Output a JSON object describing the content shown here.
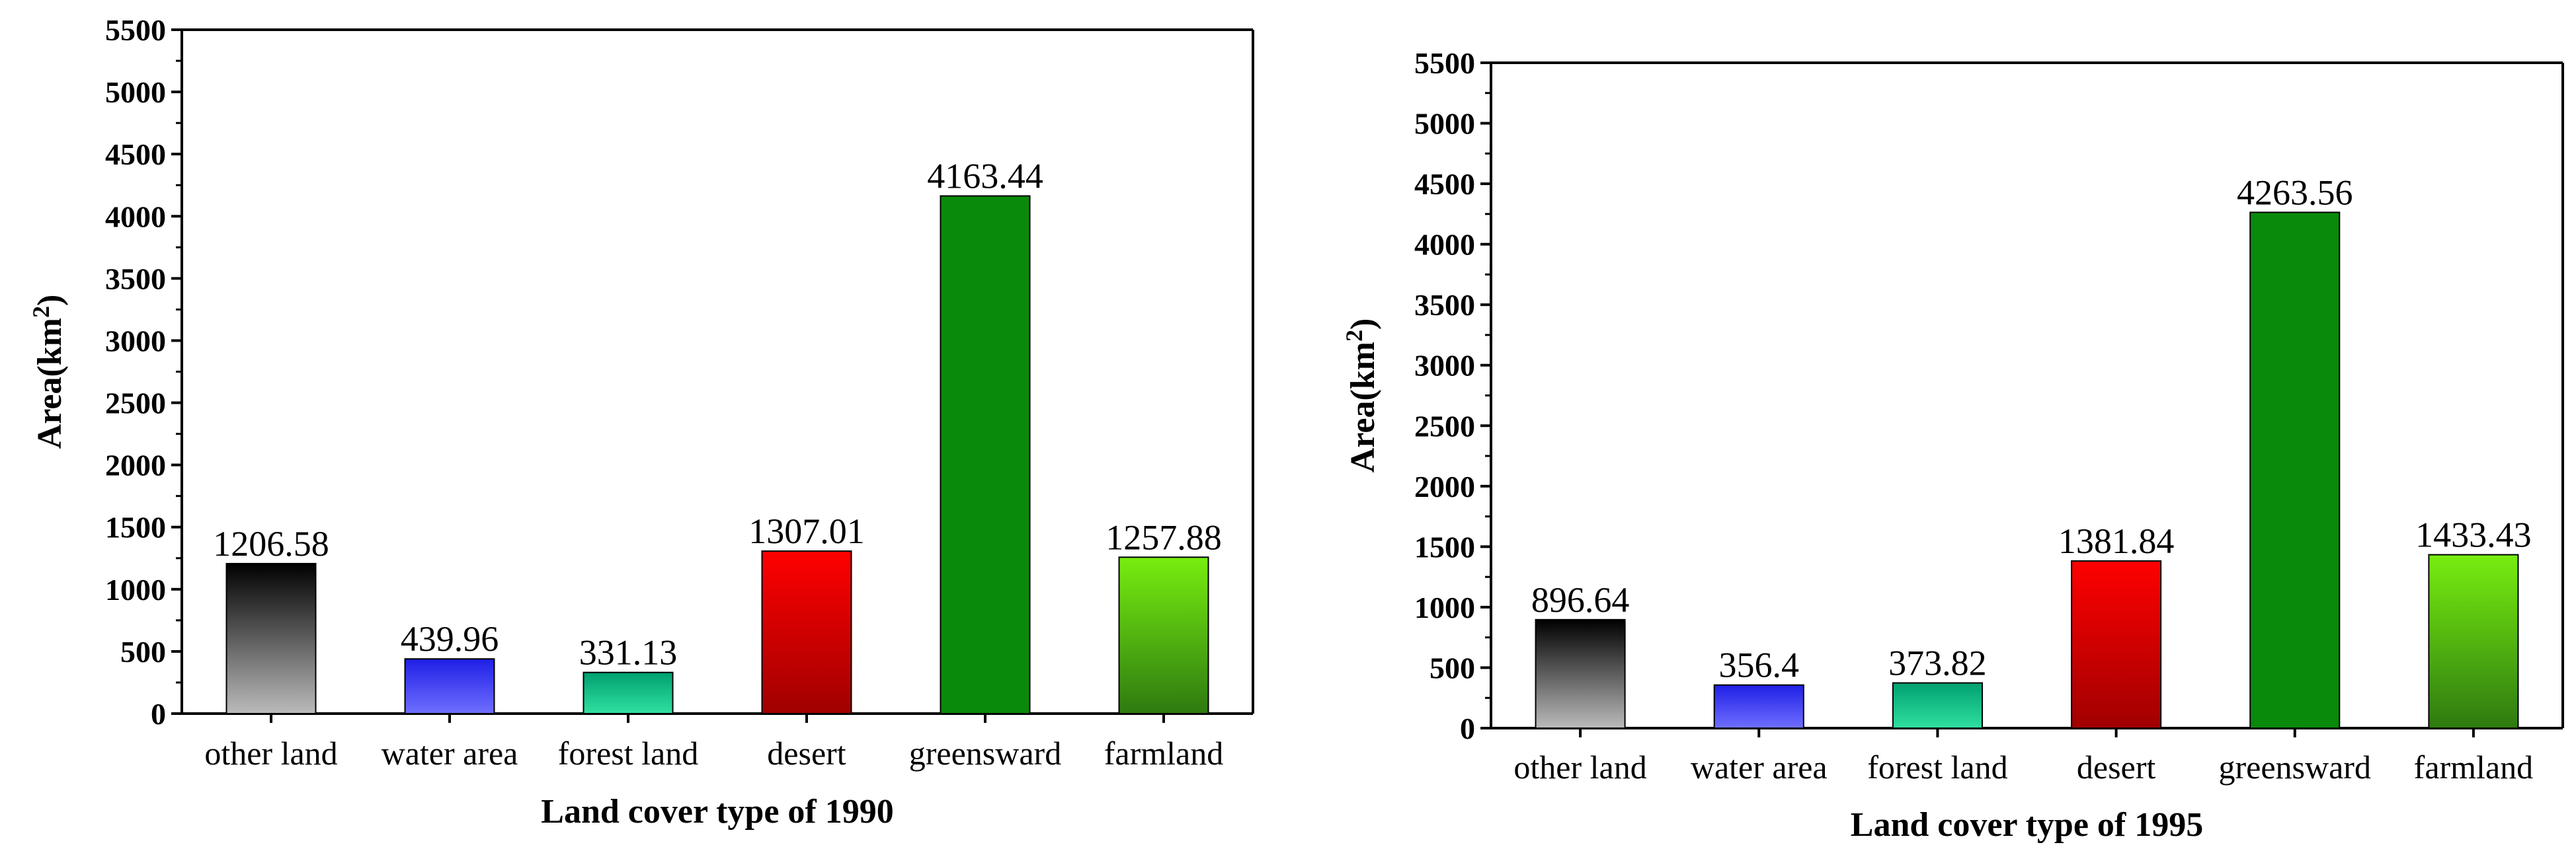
{
  "colors": {
    "other_land": [
      "#000000",
      "#bbbbbb"
    ],
    "water_area": [
      "#1f1fe6",
      "#6f6fff"
    ],
    "forest_land": [
      "#00a070",
      "#30e0a0"
    ],
    "desert": [
      "#ff0000",
      "#a00000"
    ],
    "greensward": [
      "#0a8a0a",
      "#0a8a0a"
    ],
    "farmland": [
      "#77ee10",
      "#2e7a10"
    ]
  },
  "chart_data": [
    {
      "type": "bar",
      "categories": [
        "other land",
        "water area",
        "forest land",
        "desert",
        "greensward",
        "farmland"
      ],
      "values": [
        1206.58,
        439.96,
        331.13,
        1307.01,
        4163.44,
        1257.88
      ],
      "value_labels": [
        "1206.58",
        "439.96",
        "331.13",
        "1307.01",
        "4163.44",
        "1257.88"
      ],
      "yticks": [
        "0",
        "500",
        "1000",
        "1500",
        "2000",
        "2500",
        "3000",
        "3500",
        "4000",
        "4500",
        "5000",
        "5500"
      ],
      "ylim": [
        0,
        5500
      ],
      "ylabel": "Area(km",
      "ylabel_sup": "2",
      "ylabel_close": ")",
      "xlabel": "Land cover type of 1990",
      "grid": false,
      "legend": "none"
    },
    {
      "type": "bar",
      "categories": [
        "other land",
        "water area",
        "forest land",
        "desert",
        "greensward",
        "farmland"
      ],
      "values": [
        896.64,
        356.4,
        373.82,
        1381.84,
        4263.56,
        1433.43
      ],
      "value_labels": [
        "896.64",
        "356.4",
        "373.82",
        "1381.84",
        "4263.56",
        "1433.43"
      ],
      "yticks": [
        "0",
        "500",
        "1000",
        "1500",
        "2000",
        "2500",
        "3000",
        "3500",
        "4000",
        "4500",
        "5000",
        "5500"
      ],
      "ylim": [
        0,
        5500
      ],
      "ylabel": "Area(km",
      "ylabel_sup": "2",
      "ylabel_close": ")",
      "xlabel": "Land cover type of 1995",
      "grid": false,
      "legend": "none"
    }
  ]
}
